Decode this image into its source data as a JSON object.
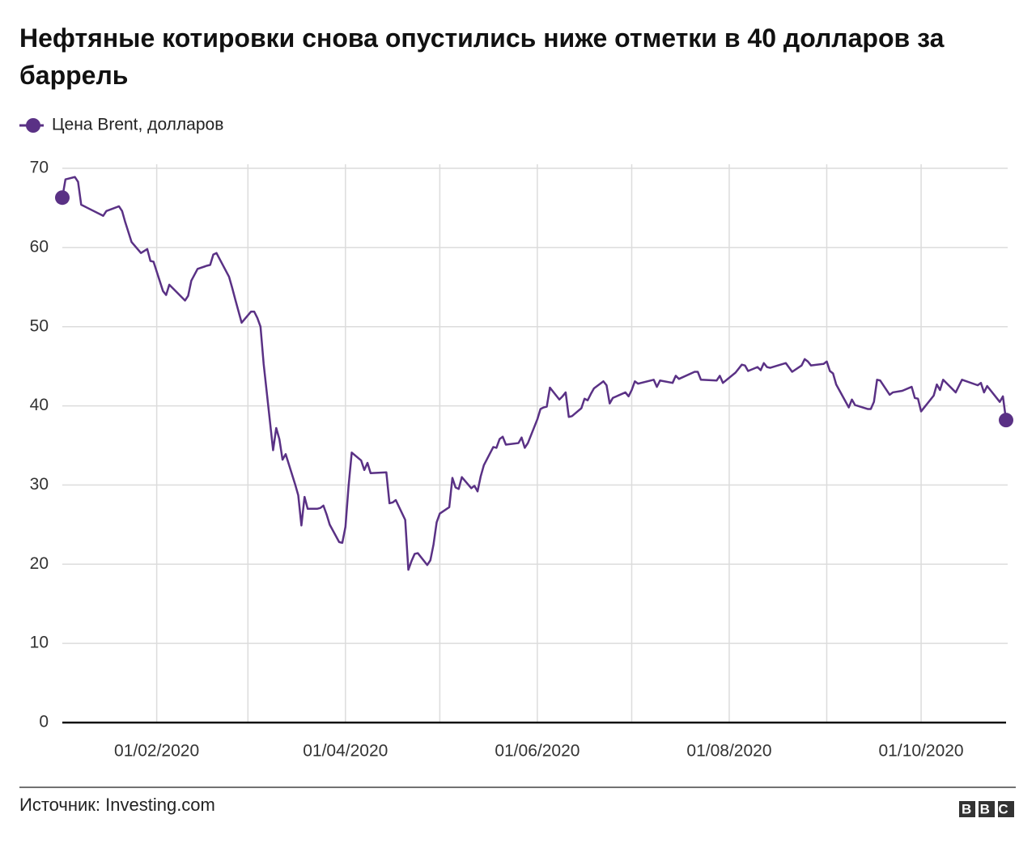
{
  "chart_data": {
    "type": "line",
    "title": "Нефтяные котировки снова опустились ниже отметки в 40 долларов за баррель",
    "x": [
      "2020-01-02",
      "2020-01-03",
      "2020-01-06",
      "2020-01-07",
      "2020-01-08",
      "2020-01-10",
      "2020-01-14",
      "2020-01-15",
      "2020-01-16",
      "2020-01-20",
      "2020-01-21",
      "2020-01-22",
      "2020-01-24",
      "2020-01-27",
      "2020-01-29",
      "2020-01-30",
      "2020-01-31",
      "2020-02-03",
      "2020-02-04",
      "2020-02-05",
      "2020-02-07",
      "2020-02-10",
      "2020-02-11",
      "2020-02-12",
      "2020-02-14",
      "2020-02-17",
      "2020-02-18",
      "2020-02-19",
      "2020-02-20",
      "2020-02-24",
      "2020-02-25",
      "2020-02-26",
      "2020-02-28",
      "2020-03-02",
      "2020-03-03",
      "2020-03-04",
      "2020-03-05",
      "2020-03-06",
      "2020-03-09",
      "2020-03-10",
      "2020-03-11",
      "2020-03-12",
      "2020-03-13",
      "2020-03-16",
      "2020-03-17",
      "2020-03-18",
      "2020-03-19",
      "2020-03-20",
      "2020-03-23",
      "2020-03-24",
      "2020-03-25",
      "2020-03-26",
      "2020-03-27",
      "2020-03-30",
      "2020-03-31",
      "2020-04-01",
      "2020-04-02",
      "2020-04-03",
      "2020-04-06",
      "2020-04-07",
      "2020-04-08",
      "2020-04-09",
      "2020-04-14",
      "2020-04-15",
      "2020-04-16",
      "2020-04-17",
      "2020-04-20",
      "2020-04-21",
      "2020-04-22",
      "2020-04-23",
      "2020-04-24",
      "2020-04-27",
      "2020-04-28",
      "2020-04-29",
      "2020-04-30",
      "2020-05-01",
      "2020-05-04",
      "2020-05-05",
      "2020-05-06",
      "2020-05-07",
      "2020-05-08",
      "2020-05-11",
      "2020-05-12",
      "2020-05-13",
      "2020-05-14",
      "2020-05-15",
      "2020-05-18",
      "2020-05-19",
      "2020-05-20",
      "2020-05-21",
      "2020-05-22",
      "2020-05-26",
      "2020-05-27",
      "2020-05-28",
      "2020-05-29",
      "2020-06-01",
      "2020-06-02",
      "2020-06-03",
      "2020-06-04",
      "2020-06-05",
      "2020-06-08",
      "2020-06-09",
      "2020-06-10",
      "2020-06-11",
      "2020-06-12",
      "2020-06-15",
      "2020-06-16",
      "2020-06-17",
      "2020-06-18",
      "2020-06-19",
      "2020-06-22",
      "2020-06-23",
      "2020-06-24",
      "2020-06-25",
      "2020-06-29",
      "2020-06-30",
      "2020-07-01",
      "2020-07-02",
      "2020-07-03",
      "2020-07-08",
      "2020-07-09",
      "2020-07-10",
      "2020-07-14",
      "2020-07-15",
      "2020-07-16",
      "2020-07-21",
      "2020-07-22",
      "2020-07-23",
      "2020-07-28",
      "2020-07-29",
      "2020-07-30",
      "2020-08-03",
      "2020-08-05",
      "2020-08-06",
      "2020-08-07",
      "2020-08-10",
      "2020-08-11",
      "2020-08-12",
      "2020-08-13",
      "2020-08-14",
      "2020-08-19",
      "2020-08-21",
      "2020-08-24",
      "2020-08-25",
      "2020-08-26",
      "2020-08-27",
      "2020-08-31",
      "2020-09-01",
      "2020-09-02",
      "2020-09-03",
      "2020-09-04",
      "2020-09-08",
      "2020-09-09",
      "2020-09-10",
      "2020-09-14",
      "2020-09-15",
      "2020-09-16",
      "2020-09-17",
      "2020-09-18",
      "2020-09-21",
      "2020-09-22",
      "2020-09-25",
      "2020-09-28",
      "2020-09-29",
      "2020-09-30",
      "2020-10-01",
      "2020-10-05",
      "2020-10-06",
      "2020-10-07",
      "2020-10-08",
      "2020-10-12",
      "2020-10-13",
      "2020-10-14",
      "2020-10-19",
      "2020-10-20",
      "2020-10-21",
      "2020-10-22",
      "2020-10-26",
      "2020-10-27",
      "2020-10-28"
    ],
    "series": [
      {
        "name": "Цена Brent, долларов",
        "color": "#5a3185",
        "values": [
          66.3,
          68.6,
          68.9,
          68.3,
          65.4,
          65.0,
          64.2,
          64.0,
          64.6,
          65.2,
          64.6,
          63.2,
          60.7,
          59.3,
          59.8,
          58.3,
          58.2,
          54.5,
          54.0,
          55.3,
          54.5,
          53.3,
          53.9,
          55.8,
          57.3,
          57.7,
          57.8,
          59.1,
          59.3,
          56.3,
          54.9,
          53.4,
          50.5,
          51.9,
          51.9,
          51.1,
          50.0,
          45.3,
          34.4,
          37.2,
          35.8,
          33.2,
          33.9,
          30.1,
          28.7,
          24.9,
          28.5,
          27.0,
          27.0,
          27.1,
          27.4,
          26.3,
          25.0,
          22.8,
          22.7,
          24.7,
          29.9,
          34.1,
          33.1,
          31.9,
          32.8,
          31.5,
          31.6,
          27.7,
          27.8,
          28.1,
          25.6,
          19.3,
          20.4,
          21.3,
          21.4,
          19.9,
          20.5,
          22.5,
          25.3,
          26.4,
          27.2,
          30.9,
          29.7,
          29.5,
          31.0,
          29.6,
          29.9,
          29.2,
          31.1,
          32.5,
          34.8,
          34.7,
          35.8,
          36.1,
          35.1,
          35.3,
          36.0,
          34.7,
          35.3,
          38.3,
          39.6,
          39.8,
          39.9,
          42.3,
          40.8,
          41.2,
          41.7,
          38.6,
          38.7,
          39.7,
          40.9,
          40.7,
          41.5,
          42.2,
          43.1,
          42.6,
          40.3,
          41.0,
          41.7,
          41.2,
          42.0,
          43.1,
          42.8,
          43.3,
          42.4,
          43.2,
          42.9,
          43.8,
          43.4,
          44.3,
          44.3,
          43.3,
          43.2,
          43.8,
          42.9,
          44.2,
          45.2,
          45.1,
          44.4,
          44.9,
          44.5,
          45.4,
          44.9,
          44.8,
          45.4,
          44.3,
          45.1,
          45.9,
          45.6,
          45.1,
          45.3,
          45.6,
          44.4,
          44.1,
          42.7,
          39.8,
          40.8,
          40.1,
          39.6,
          39.6,
          40.5,
          43.3,
          43.2,
          41.4,
          41.7,
          41.9,
          42.4,
          41.0,
          40.9,
          39.3,
          41.3,
          42.7,
          42.0,
          43.3,
          41.7,
          42.5,
          43.3,
          42.6,
          42.9,
          41.7,
          42.5,
          40.5,
          41.2,
          38.2
        ]
      }
    ],
    "xlim": [
      "2020-01-02",
      "2020-10-28"
    ],
    "xticks": [
      {
        "value": "2020-02-01",
        "label": "01/02/2020"
      },
      {
        "value": "2020-03-01",
        "label": null
      },
      {
        "value": "2020-04-01",
        "label": "01/04/2020"
      },
      {
        "value": "2020-05-01",
        "label": null
      },
      {
        "value": "2020-06-01",
        "label": "01/06/2020"
      },
      {
        "value": "2020-07-01",
        "label": null
      },
      {
        "value": "2020-08-01",
        "label": "01/08/2020"
      },
      {
        "value": "2020-09-01",
        "label": null
      },
      {
        "value": "2020-10-01",
        "label": "01/10/2020"
      }
    ],
    "ylim": [
      0,
      70
    ],
    "yticks": [
      0,
      10,
      20,
      30,
      40,
      50,
      60,
      70
    ],
    "grid": true
  },
  "footer": {
    "source": "Источник: Investing.com",
    "logo": "BBC"
  }
}
